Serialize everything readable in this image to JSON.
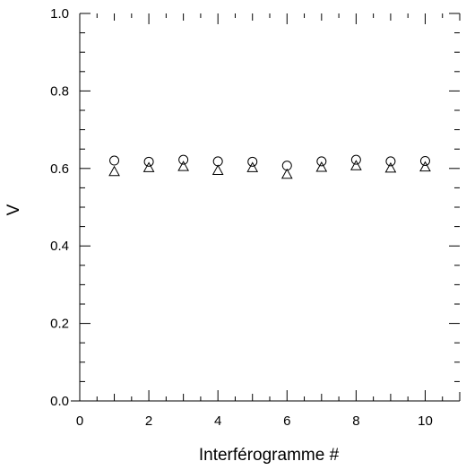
{
  "chart_data": {
    "type": "scatter",
    "title": "",
    "xlabel": "Interférogramme #",
    "ylabel": "V",
    "xlim": [
      0,
      11
    ],
    "ylim": [
      0.0,
      1.0
    ],
    "x_ticks": [
      0,
      2,
      4,
      6,
      8,
      10
    ],
    "x_tick_labels": [
      "0",
      "2",
      "4",
      "6",
      "8",
      "10"
    ],
    "y_ticks": [
      0.0,
      0.2,
      0.4,
      0.6,
      0.8,
      1.0
    ],
    "y_tick_labels": [
      "0.0",
      "0.2",
      "0.4",
      "0.6",
      "0.8",
      "1.0"
    ],
    "grid": false,
    "legend": "none",
    "series": [
      {
        "marker": "circle",
        "x": [
          1,
          2,
          3,
          4,
          5,
          6,
          7,
          8,
          9,
          10
        ],
        "y": [
          0.618,
          0.615,
          0.62,
          0.616,
          0.615,
          0.605,
          0.616,
          0.62,
          0.616,
          0.617
        ]
      },
      {
        "marker": "triangle",
        "x": [
          1,
          2,
          3,
          4,
          5,
          6,
          7,
          8,
          9,
          10
        ],
        "y": [
          0.592,
          0.602,
          0.605,
          0.595,
          0.602,
          0.585,
          0.603,
          0.607,
          0.601,
          0.604
        ]
      }
    ]
  }
}
